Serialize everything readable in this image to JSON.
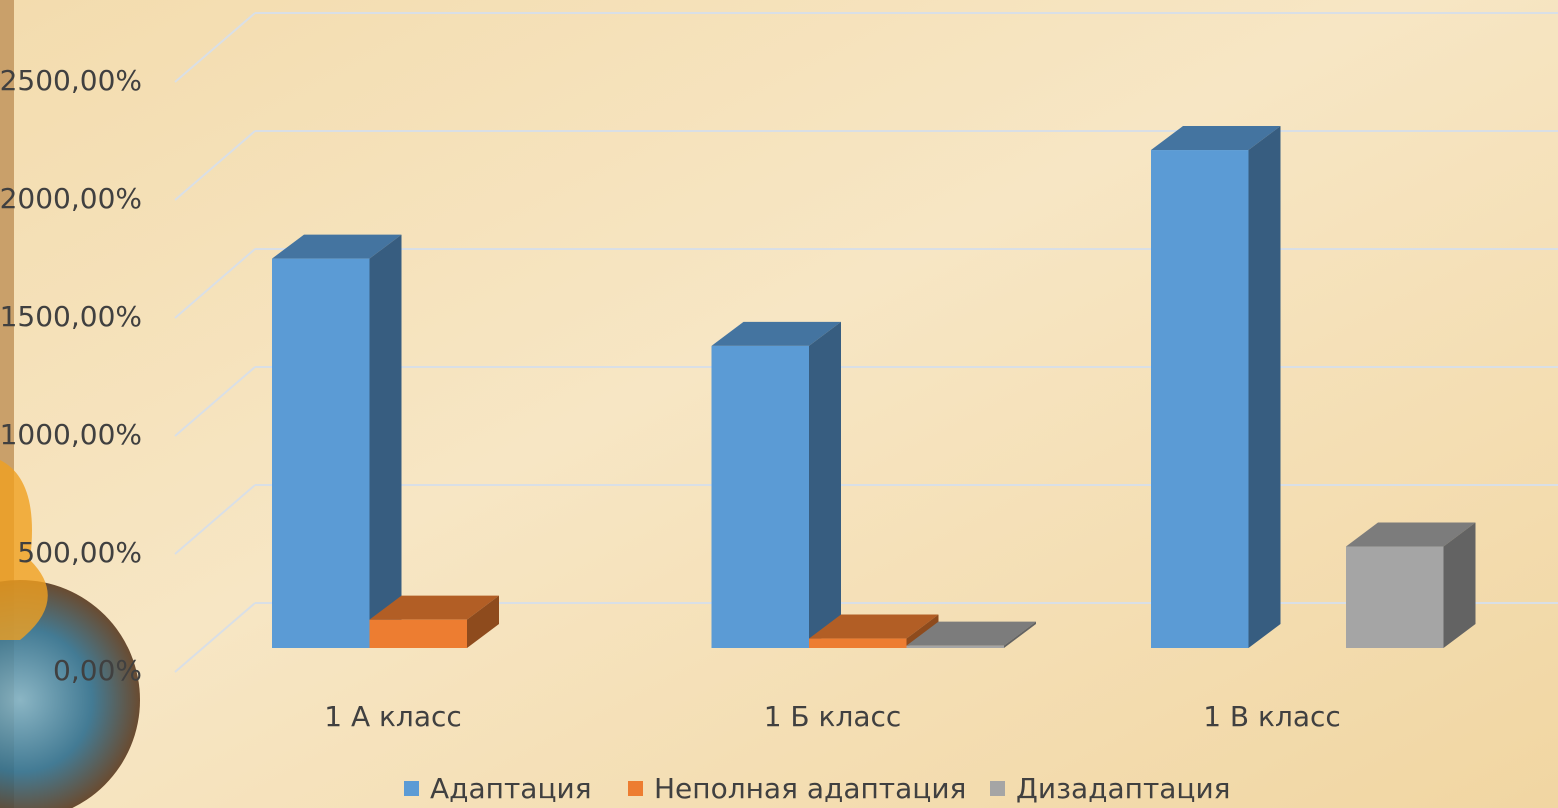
{
  "chart_data": {
    "type": "bar3d",
    "categories": [
      "1 А класс",
      "1 Б класс",
      "1 В класс"
    ],
    "series": [
      {
        "name": "Адаптация",
        "color": "#5b9bd5",
        "values": [
          1650,
          1280,
          2110
        ]
      },
      {
        "name": "Неполная адаптация",
        "color": "#ed7d31",
        "values": [
          120,
          40,
          0
        ]
      },
      {
        "name": "Дизадаптация",
        "color": "#a5a5a5",
        "values": [
          0,
          10,
          430
        ]
      }
    ],
    "ylim": [
      0,
      2500
    ],
    "yticks": [
      {
        "value": 0,
        "label": "0,00%"
      },
      {
        "value": 500,
        "label": "500,00%"
      },
      {
        "value": 1000,
        "label": "1000,00%"
      },
      {
        "value": 1500,
        "label": "1500,00%"
      },
      {
        "value": 2000,
        "label": "2000,00%"
      },
      {
        "value": 2500,
        "label": "2500,00%"
      }
    ],
    "grid": true,
    "legend": "bottom"
  }
}
